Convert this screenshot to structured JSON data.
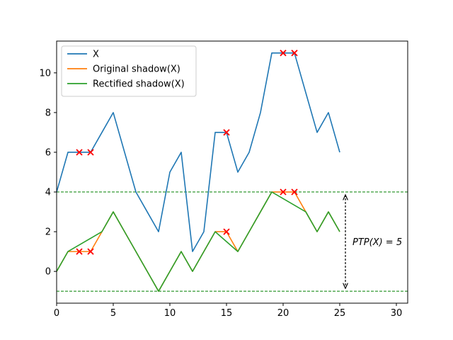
{
  "chart_data": {
    "type": "line",
    "xlim": [
      0,
      31
    ],
    "ylim": [
      -1.6,
      11.6
    ],
    "x_ticks": [
      0,
      5,
      10,
      15,
      20,
      25,
      30
    ],
    "y_ticks": [
      0,
      2,
      4,
      6,
      8,
      10
    ],
    "x_tick_labels": [
      "0",
      "5",
      "10",
      "15",
      "20",
      "25",
      "30"
    ],
    "y_tick_labels": [
      "0",
      "2",
      "4",
      "6",
      "8",
      "10"
    ],
    "legend_position": "upper-left",
    "series": [
      {
        "name": "X",
        "color": "#1f77b4",
        "x": [
          0,
          1,
          2,
          3,
          4,
          5,
          6,
          7,
          8,
          9,
          10,
          11,
          12,
          13,
          14,
          15,
          16,
          17,
          18,
          19,
          20,
          21,
          22,
          23,
          24,
          25
        ],
        "values": [
          4,
          6,
          6,
          6,
          7,
          8,
          6,
          4,
          3,
          2,
          5,
          6,
          1,
          2,
          7,
          7,
          5,
          6,
          8,
          11,
          11,
          11,
          9,
          7,
          8,
          6
        ]
      },
      {
        "name": "Original shadow(X)",
        "color": "#ff7f0e",
        "x": [
          0,
          1,
          2,
          3,
          4,
          5,
          6,
          7,
          8,
          9,
          10,
          11,
          12,
          13,
          14,
          15,
          16,
          17,
          18,
          19,
          20,
          21,
          22,
          23,
          24,
          25
        ],
        "values": [
          0,
          1,
          1,
          1,
          2,
          3,
          2,
          1,
          0,
          -1,
          0,
          1,
          0,
          1,
          2,
          2,
          1,
          2,
          3,
          4,
          4,
          4,
          3,
          2,
          3,
          2
        ]
      },
      {
        "name": "Rectified shadow(X)",
        "color": "#2ca02c",
        "x": [
          0,
          1,
          4,
          5,
          6,
          7,
          8,
          9,
          10,
          11,
          12,
          13,
          14,
          16,
          17,
          18,
          19,
          22,
          23,
          24,
          25
        ],
        "values": [
          0,
          1,
          2,
          3,
          2,
          1,
          0,
          -1,
          0,
          1,
          0,
          1,
          2,
          1,
          2,
          3,
          4,
          3,
          2,
          3,
          2
        ]
      }
    ],
    "markers": {
      "color": "#ff0000",
      "x_series": [
        2,
        3,
        15,
        20,
        21
      ],
      "x_series_values": [
        6,
        6,
        7,
        11,
        11
      ],
      "shadow": [
        2,
        3,
        15,
        20,
        21
      ],
      "shadow_values": [
        1,
        1,
        2,
        4,
        4
      ]
    },
    "hlines": {
      "color": "#008000",
      "values": [
        4,
        -1
      ]
    },
    "annotation": {
      "x": 25.5,
      "y_from": -1,
      "y_to": 4,
      "label": "PTP(X) = 5"
    }
  }
}
